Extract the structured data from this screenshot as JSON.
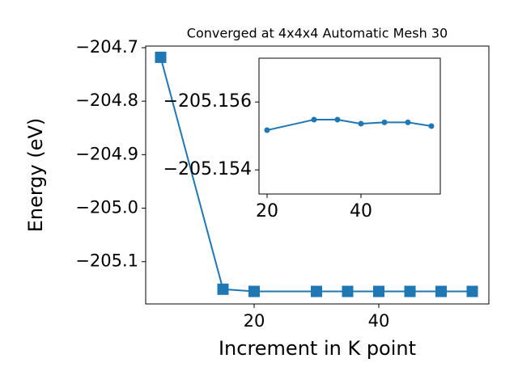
{
  "chart_data": [
    {
      "type": "line",
      "title": "Converged at 4x4x4 Automatic Mesh 30",
      "x_label": "Increment in K point",
      "y_label": "Energy (eV)",
      "x": [
        5,
        15,
        20,
        30,
        35,
        40,
        45,
        50,
        55
      ],
      "series": [
        {
          "color": "#1f77b4",
          "marker": "square",
          "values": [
            -204.718,
            -205.1515,
            -205.1556,
            -205.1556,
            -205.1556,
            -205.1556,
            -205.1556,
            -205.1556,
            -205.1556
          ]
        }
      ],
      "xlim": [
        2.6,
        57.66
      ],
      "ylim": [
        -205.179,
        -204.697
      ],
      "xticks": [
        20,
        40
      ],
      "yticks": [
        {
          "value": -204.7,
          "label": "−204.7"
        },
        {
          "value": -204.8,
          "label": "−204.8"
        },
        {
          "value": -204.9,
          "label": "−204.9"
        },
        {
          "value": -205.0,
          "label": "−205.0"
        },
        {
          "value": -205.1,
          "label": "−205.1"
        }
      ]
    },
    {
      "type": "line",
      "x": [
        20,
        30,
        35,
        40,
        45,
        50,
        55
      ],
      "series": [
        {
          "color": "#1f77b4",
          "marker": "circle",
          "values": [
            -205.15517,
            -205.15548,
            -205.15548,
            -205.15536,
            -205.1554,
            -205.1554,
            -205.15529
          ]
        }
      ],
      "xlim": [
        18.28,
        56.9
      ],
      "ylim": [
        -205.15329,
        -205.15729
      ],
      "xticks": [
        20,
        40
      ],
      "yticks": [
        {
          "value": -205.156,
          "label": "−205.156"
        },
        {
          "value": -205.154,
          "label": "−205.154"
        }
      ]
    }
  ]
}
